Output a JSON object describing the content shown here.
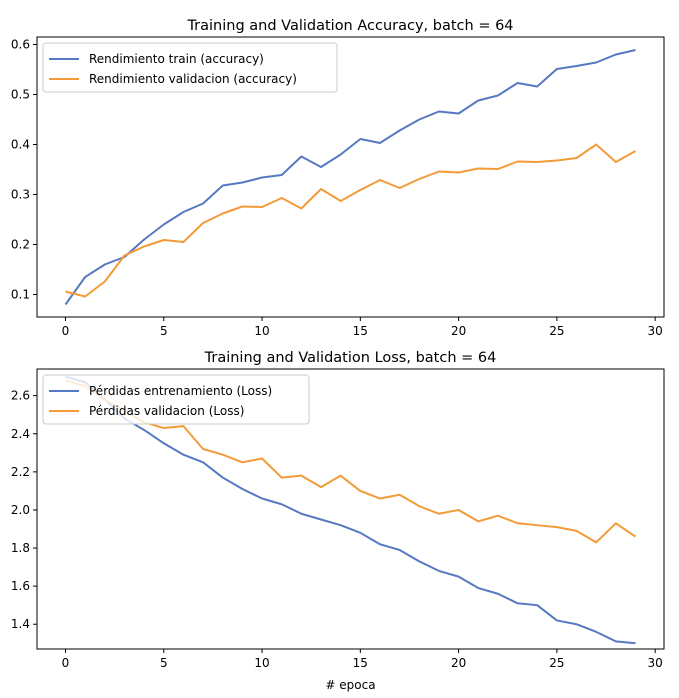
{
  "colors": {
    "train": "#5679c1",
    "validation": "#f29b38"
  },
  "chart_data": [
    {
      "type": "line",
      "title": "Training and Validation Accuracy, batch = 64",
      "xlabel": "",
      "ylabel": "",
      "xlim": [
        -1.45,
        30.45
      ],
      "ylim": [
        0.055,
        0.615
      ],
      "xticks": [
        0,
        5,
        10,
        15,
        20,
        25,
        30
      ],
      "yticks": [
        0.1,
        0.2,
        0.3,
        0.4,
        0.5,
        0.6
      ],
      "ytick_labels": [
        "0.1",
        "0.2",
        "0.3",
        "0.4",
        "0.5",
        "0.6"
      ],
      "grid": false,
      "legend_position": "top-left",
      "x": [
        0,
        1,
        2,
        3,
        4,
        5,
        6,
        7,
        8,
        9,
        10,
        11,
        12,
        13,
        14,
        15,
        16,
        17,
        18,
        19,
        20,
        21,
        22,
        23,
        24,
        25,
        26,
        27,
        28,
        29
      ],
      "series": [
        {
          "name": "Rendimiento train (accuracy)",
          "color_key": "train",
          "values": [
            0.08,
            0.135,
            0.16,
            0.175,
            0.21,
            0.24,
            0.265,
            0.282,
            0.318,
            0.324,
            0.334,
            0.339,
            0.376,
            0.355,
            0.38,
            0.411,
            0.403,
            0.428,
            0.45,
            0.466,
            0.462,
            0.488,
            0.498,
            0.523,
            0.516,
            0.551,
            0.557,
            0.564,
            0.58,
            0.589
          ]
        },
        {
          "name": "Rendimiento validacion (accuracy)",
          "color_key": "validation",
          "values": [
            0.106,
            0.096,
            0.126,
            0.178,
            0.196,
            0.209,
            0.205,
            0.243,
            0.262,
            0.276,
            0.275,
            0.293,
            0.272,
            0.311,
            0.287,
            0.309,
            0.329,
            0.313,
            0.331,
            0.346,
            0.344,
            0.352,
            0.351,
            0.366,
            0.365,
            0.368,
            0.373,
            0.4,
            0.365,
            0.387
          ]
        }
      ]
    },
    {
      "type": "line",
      "title": "Training and Validation Loss, batch = 64",
      "xlabel": "# epoca",
      "ylabel": "",
      "xlim": [
        -1.45,
        30.45
      ],
      "ylim": [
        1.27,
        2.74
      ],
      "xticks": [
        0,
        5,
        10,
        15,
        20,
        25,
        30
      ],
      "yticks": [
        1.4,
        1.6,
        1.8,
        2.0,
        2.2,
        2.4,
        2.6
      ],
      "ytick_labels": [
        "1.4",
        "1.6",
        "1.8",
        "2.0",
        "2.2",
        "2.4",
        "2.6"
      ],
      "grid": false,
      "legend_position": "top-left",
      "x": [
        0,
        1,
        2,
        3,
        4,
        5,
        6,
        7,
        8,
        9,
        10,
        11,
        12,
        13,
        14,
        15,
        16,
        17,
        18,
        19,
        20,
        21,
        22,
        23,
        24,
        25,
        26,
        27,
        28,
        29
      ],
      "series": [
        {
          "name": "Pérdidas entrenamiento (Loss)",
          "color_key": "train",
          "values": [
            2.7,
            2.67,
            2.58,
            2.48,
            2.42,
            2.35,
            2.29,
            2.25,
            2.17,
            2.11,
            2.06,
            2.03,
            1.98,
            1.95,
            1.92,
            1.88,
            1.82,
            1.79,
            1.73,
            1.68,
            1.65,
            1.59,
            1.56,
            1.51,
            1.5,
            1.42,
            1.4,
            1.36,
            1.31,
            1.3
          ]
        },
        {
          "name": "Pérdidas validacion (Loss)",
          "color_key": "validation",
          "values": [
            2.68,
            2.65,
            2.58,
            2.52,
            2.46,
            2.43,
            2.44,
            2.32,
            2.29,
            2.25,
            2.27,
            2.17,
            2.18,
            2.12,
            2.18,
            2.1,
            2.06,
            2.08,
            2.02,
            1.98,
            2.0,
            1.94,
            1.97,
            1.93,
            1.92,
            1.91,
            1.89,
            1.83,
            1.93,
            1.86
          ]
        }
      ]
    }
  ]
}
